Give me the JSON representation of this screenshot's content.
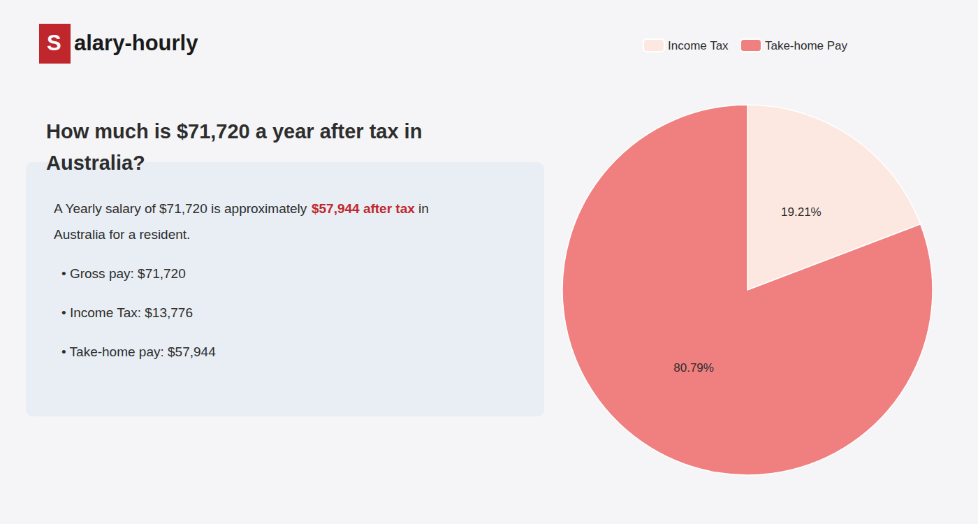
{
  "chart_data": {
    "type": "pie",
    "title": "How much is $71,720 a year after tax in Australia?",
    "categories": [
      "Income Tax",
      "Take-home Pay"
    ],
    "values": [
      19.21,
      80.79
    ],
    "value_labels": [
      "19.21%",
      "80.79%"
    ],
    "colors": [
      "#fce8e0",
      "#f08080"
    ],
    "data_labels": true,
    "legend": "top",
    "annotations": [
      "S",
      "alary-hourly",
      "A Yearly salary of $71,720 is approximately ",
      "$57,944 after tax",
      " in",
      "Australia for a resident.",
      "• Gross pay: $71,720",
      "• Income Tax: $13,776",
      "• Take-home pay: $57,944"
    ]
  }
}
